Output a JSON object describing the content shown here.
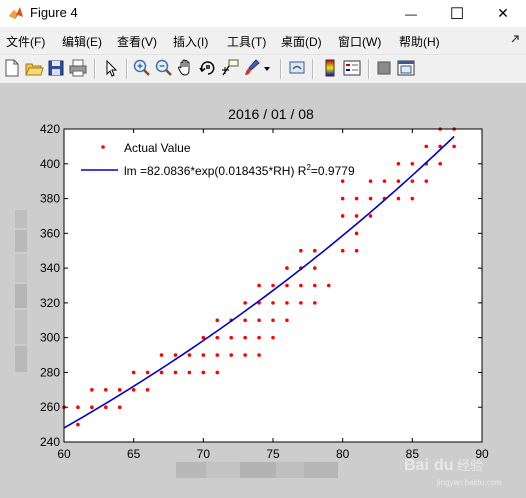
{
  "window": {
    "title": "Figure 4",
    "minimize_symbol": "—",
    "maximize_symbol": "☐",
    "close_symbol": "✕"
  },
  "menu": {
    "items": [
      "文件(F)",
      "编辑(E)",
      "查看(V)",
      "插入(I)",
      "工具(T)",
      "桌面(D)",
      "窗口(W)",
      "帮助(H)"
    ]
  },
  "toolbar": {
    "buttons": [
      "new-figure-icon",
      "open-file-icon",
      "save-icon",
      "print-icon",
      "edit-plot-arrow-icon",
      "zoom-in-icon",
      "zoom-out-icon",
      "pan-hand-icon",
      "rotate-3d-icon",
      "data-cursor-icon",
      "brush-icon",
      "link-plot-icon",
      "colorbar-icon",
      "legend-icon",
      "hide-plot-tools-icon",
      "show-plot-tools-icon"
    ]
  },
  "colors": {
    "titlebar": "#ffffff",
    "figure_background": "#cdcdcd",
    "axes_background": "#ffffff",
    "data_marker": "#ff0000",
    "fit_line": "#0000cc"
  },
  "chart_data": {
    "type": "scatter",
    "title": "2016 / 01 / 08",
    "xlabel": "",
    "ylabel": "",
    "xlim": [
      60,
      90
    ],
    "ylim": [
      240,
      420
    ],
    "xticks": [
      "60",
      "65",
      "70",
      "75",
      "80",
      "85",
      "90"
    ],
    "yticks": [
      "240",
      "260",
      "280",
      "300",
      "320",
      "340",
      "360",
      "380",
      "400",
      "420"
    ],
    "grid": false,
    "legend_position": "top-left",
    "series": [
      {
        "name": "Actual Value",
        "style": "dots",
        "points": [
          [
            60,
            260
          ],
          [
            61,
            260
          ],
          [
            61,
            250
          ],
          [
            62,
            270
          ],
          [
            62,
            260
          ],
          [
            63,
            270
          ],
          [
            63,
            260
          ],
          [
            64,
            270
          ],
          [
            64,
            260
          ],
          [
            65,
            280
          ],
          [
            65,
            270
          ],
          [
            66,
            280
          ],
          [
            66,
            270
          ],
          [
            67,
            290
          ],
          [
            67,
            280
          ],
          [
            68,
            290
          ],
          [
            68,
            280
          ],
          [
            69,
            290
          ],
          [
            69,
            280
          ],
          [
            70,
            300
          ],
          [
            70,
            290
          ],
          [
            70,
            280
          ],
          [
            71,
            310
          ],
          [
            71,
            300
          ],
          [
            71,
            290
          ],
          [
            71,
            280
          ],
          [
            72,
            310
          ],
          [
            72,
            300
          ],
          [
            72,
            290
          ],
          [
            73,
            320
          ],
          [
            73,
            310
          ],
          [
            73,
            300
          ],
          [
            73,
            290
          ],
          [
            74,
            330
          ],
          [
            74,
            320
          ],
          [
            74,
            310
          ],
          [
            74,
            300
          ],
          [
            74,
            290
          ],
          [
            75,
            330
          ],
          [
            75,
            320
          ],
          [
            75,
            310
          ],
          [
            75,
            300
          ],
          [
            76,
            340
          ],
          [
            76,
            330
          ],
          [
            76,
            320
          ],
          [
            76,
            310
          ],
          [
            77,
            350
          ],
          [
            77,
            340
          ],
          [
            77,
            330
          ],
          [
            77,
            320
          ],
          [
            78,
            350
          ],
          [
            78,
            340
          ],
          [
            78,
            330
          ],
          [
            78,
            320
          ],
          [
            79,
            330
          ],
          [
            80,
            390
          ],
          [
            80,
            380
          ],
          [
            80,
            370
          ],
          [
            80,
            350
          ],
          [
            81,
            380
          ],
          [
            81,
            370
          ],
          [
            81,
            360
          ],
          [
            81,
            350
          ],
          [
            82,
            390
          ],
          [
            82,
            380
          ],
          [
            82,
            370
          ],
          [
            83,
            390
          ],
          [
            83,
            380
          ],
          [
            84,
            400
          ],
          [
            84,
            390
          ],
          [
            84,
            380
          ],
          [
            85,
            400
          ],
          [
            85,
            390
          ],
          [
            85,
            380
          ],
          [
            86,
            410
          ],
          [
            86,
            400
          ],
          [
            86,
            390
          ],
          [
            87,
            420
          ],
          [
            87,
            410
          ],
          [
            87,
            400
          ],
          [
            88,
            420
          ],
          [
            88,
            410
          ]
        ]
      },
      {
        "name": "lm =82.0836*exp(0.018435*RH)  R²=0.9779",
        "name_main": "lm =82.0836*exp(0.018435*RH)  R",
        "name_sup": "2",
        "name_tail": "=0.9779",
        "style": "line",
        "fit": {
          "a": 82.0836,
          "b": 0.018435,
          "x_from": 60,
          "x_to": 88
        }
      }
    ]
  },
  "watermark": {
    "brand_text": "Bai",
    "brand_symbol": "du",
    "brand_sub": "经验",
    "url": "jingyan.baidu.com"
  }
}
